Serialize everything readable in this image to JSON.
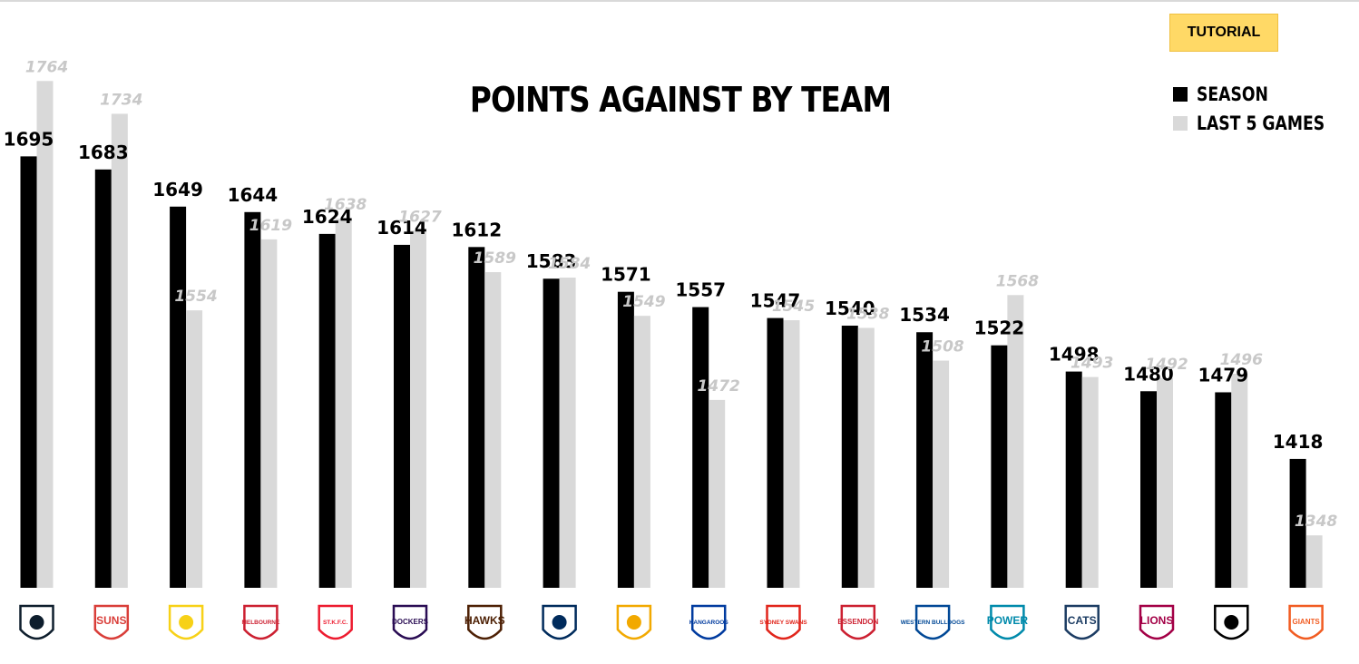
{
  "header": {
    "tutorial_label": "TUTORIAL"
  },
  "chart_data": {
    "type": "bar",
    "title": "POINTS AGAINST BY TEAM",
    "xlabel": "",
    "ylabel": "",
    "ylim": [
      1300,
      1790
    ],
    "grid": false,
    "legend_position": "top-right",
    "categories": [
      "Carlton",
      "Gold Coast Suns",
      "Richmond",
      "Melbourne",
      "St Kilda",
      "Fremantle",
      "Hawthorn",
      "Adelaide",
      "West Coast",
      "North Melbourne",
      "Sydney",
      "Essendon",
      "Western Bulldogs",
      "Port Adelaide",
      "Geelong",
      "Brisbane Lions",
      "Collingwood",
      "GWS Giants"
    ],
    "series": [
      {
        "name": "SEASON",
        "color": "#000000",
        "values": [
          1695,
          1683,
          1649,
          1644,
          1624,
          1614,
          1612,
          1583,
          1571,
          1557,
          1547,
          1540,
          1534,
          1522,
          1498,
          1480,
          1479,
          1418
        ]
      },
      {
        "name": "LAST 5 GAMES",
        "color": "#d9d9d9",
        "values": [
          1764,
          1734,
          1554,
          1619,
          1638,
          1627,
          1589,
          1584,
          1549,
          1472,
          1545,
          1538,
          1508,
          1568,
          1493,
          1492,
          1496,
          1348
        ]
      }
    ],
    "team_logos": [
      {
        "icon": "carlton-logo-icon",
        "text": "",
        "color": "#0e1e2d"
      },
      {
        "icon": "suns-logo-icon",
        "text": "SUNS",
        "color": "#d93e39"
      },
      {
        "icon": "tigers-logo-icon",
        "text": "",
        "color": "#f7d117"
      },
      {
        "icon": "melbourne-logo-icon",
        "text": "MELBOURNE",
        "color": "#cc2031"
      },
      {
        "icon": "st-kilda-logo-icon",
        "text": "ST.K.F.C.",
        "color": "#ed1b2f"
      },
      {
        "icon": "fremantle-logo-icon",
        "text": "DOCKERS",
        "color": "#2a0d54"
      },
      {
        "icon": "hawks-logo-icon",
        "text": "HAWKS",
        "color": "#4d2004"
      },
      {
        "icon": "crows-logo-icon",
        "text": "",
        "color": "#002b5c"
      },
      {
        "icon": "eagles-logo-icon",
        "text": "",
        "color": "#f2a900"
      },
      {
        "icon": "kangaroos-logo-icon",
        "text": "KANGAROOS",
        "color": "#013b9f"
      },
      {
        "icon": "swans-logo-icon",
        "text": "SYDNEY SWANS",
        "color": "#e1251b"
      },
      {
        "icon": "essendon-logo-icon",
        "text": "ESSENDON",
        "color": "#cc2031"
      },
      {
        "icon": "bulldogs-logo-icon",
        "text": "WESTERN BULLDOGS",
        "color": "#014896"
      },
      {
        "icon": "power-logo-icon",
        "text": "POWER",
        "color": "#008aab"
      },
      {
        "icon": "cats-logo-icon",
        "text": "CATS",
        "color": "#1c3c63"
      },
      {
        "icon": "lions-logo-icon",
        "text": "LIONS",
        "color": "#a30046"
      },
      {
        "icon": "magpies-logo-icon",
        "text": "",
        "color": "#000000"
      },
      {
        "icon": "giants-logo-icon",
        "text": "GIANTS",
        "color": "#f15c22"
      }
    ]
  }
}
